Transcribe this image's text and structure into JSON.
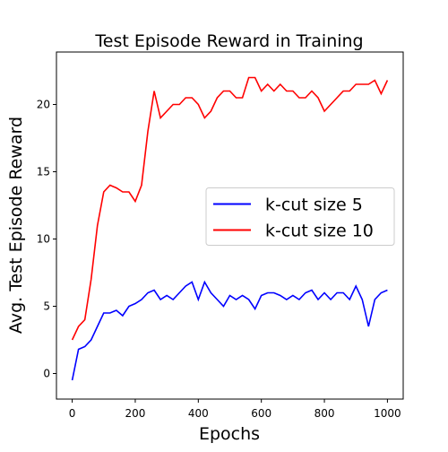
{
  "chart_data": {
    "type": "line",
    "title": "Test Episode Reward in Training",
    "xlabel": "Epochs",
    "ylabel": "Avg. Test Episode Reward",
    "x": [
      0,
      20,
      40,
      60,
      80,
      100,
      120,
      140,
      160,
      180,
      200,
      220,
      240,
      260,
      280,
      300,
      320,
      340,
      360,
      380,
      400,
      420,
      440,
      460,
      480,
      500,
      520,
      540,
      560,
      580,
      600,
      620,
      640,
      660,
      680,
      700,
      720,
      740,
      760,
      780,
      800,
      820,
      840,
      860,
      880,
      900,
      920,
      940,
      960,
      980,
      1000
    ],
    "series": [
      {
        "name": "k-cut size 5",
        "color": "#0000ff",
        "values": [
          -0.5,
          1.8,
          2,
          2.5,
          3.5,
          4.5,
          4.5,
          4.7,
          4.3,
          5,
          5.2,
          5.5,
          6,
          6.2,
          5.5,
          5.8,
          5.5,
          6,
          6.5,
          6.8,
          5.5,
          6.8,
          6,
          5.5,
          5,
          5.8,
          5.5,
          5.8,
          5.5,
          4.8,
          5.8,
          6,
          6,
          5.8,
          5.5,
          5.8,
          5.5,
          6,
          6.2,
          5.5,
          6,
          5.5,
          6,
          6,
          5.5,
          6.5,
          5.5,
          3.5,
          5.5,
          6,
          6.2
        ]
      },
      {
        "name": "k-cut size 10",
        "color": "#ff0000",
        "values": [
          2.5,
          3.5,
          4,
          7,
          11,
          13.5,
          14,
          13.8,
          13.5,
          13.5,
          12.8,
          14,
          18,
          21,
          19,
          19.5,
          20,
          20,
          20.5,
          20.5,
          20,
          19,
          19.5,
          20.5,
          21,
          21,
          20.5,
          20.5,
          22,
          22,
          21,
          21.5,
          21,
          21.5,
          21,
          21,
          20.5,
          20.5,
          21,
          20.5,
          19.5,
          20,
          20.5,
          21,
          21,
          21.5,
          21.5,
          21.5,
          21.8,
          20.8,
          21.8
        ]
      }
    ],
    "xlim": [
      -50,
      1050
    ],
    "ylim": [
      -1.9,
      23.9
    ],
    "xticks": [
      0,
      200,
      400,
      600,
      800,
      1000
    ],
    "yticks": [
      0,
      5,
      10,
      15,
      20
    ],
    "legend": "center right",
    "grid": false
  }
}
